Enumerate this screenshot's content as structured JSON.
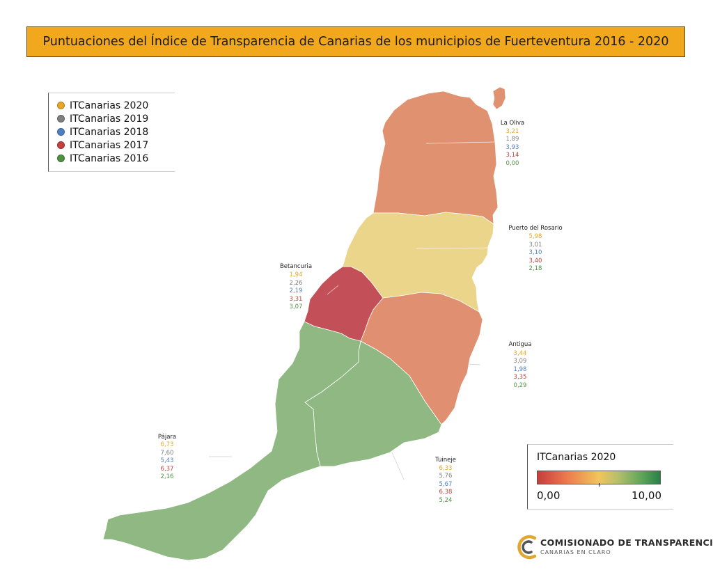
{
  "title": "Puntuaciones del Índice de Transparencia de Canarias de los municipios de Fuerteventura 2016 - 2020",
  "legend": [
    {
      "label": "ITCanarias 2020",
      "color": "#e7a725"
    },
    {
      "label": "ITCanarias 2019",
      "color": "#7f7f7f"
    },
    {
      "label": "ITCanarias 2018",
      "color": "#4f7fc0"
    },
    {
      "label": "ITCanarias 2017",
      "color": "#c0413f"
    },
    {
      "label": "ITCanarias 2016",
      "color": "#4f9141"
    }
  ],
  "municipalities": [
    {
      "name": "La Oliva",
      "fill": "#e09270",
      "values": [
        "3,21",
        "1,89",
        "3,93",
        "3,14",
        "0,00"
      ]
    },
    {
      "name": "Puerto del Rosario",
      "fill": "#ebd58a",
      "values": [
        "5,98",
        "3,01",
        "3,10",
        "3,40",
        "2,18"
      ]
    },
    {
      "name": "Betancuria",
      "fill": "#c35058",
      "values": [
        "1,94",
        "2,26",
        "2,19",
        "3,31",
        "3,07"
      ]
    },
    {
      "name": "Antigua",
      "fill": "#e09070",
      "values": [
        "3,44",
        "3,09",
        "1,98",
        "3,35",
        "0,29"
      ]
    },
    {
      "name": "Pájara",
      "fill": "#8fb882",
      "values": [
        "6,73",
        "7,60",
        "5,43",
        "6,37",
        "2,16"
      ]
    },
    {
      "name": "Tuineje",
      "fill": "#8fb882",
      "values": [
        "6,33",
        "5,76",
        "5,67",
        "6,38",
        "5,24"
      ]
    }
  ],
  "scale": {
    "title": "ITCanarias 2020",
    "min_label": "0,00",
    "max_label": "10,00",
    "marker_value": 5.0
  },
  "logo": {
    "name": "COMISIONADO DE TRANSPARENCIA",
    "tagline": "CANARIAS EN CLARO",
    "color": "#e2a72e"
  }
}
